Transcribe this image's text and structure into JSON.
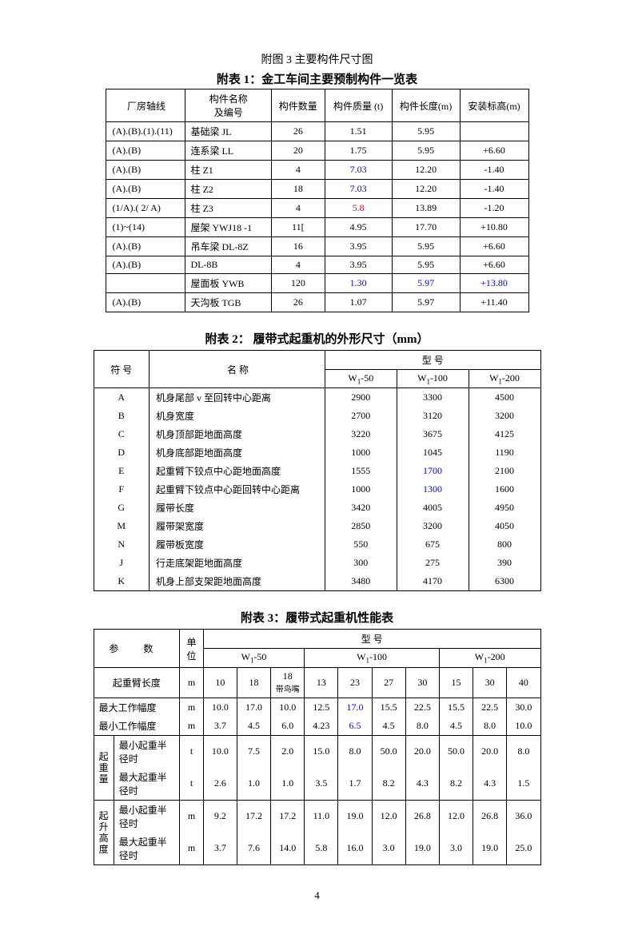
{
  "fig3_caption": "附图 3   主要构件尺寸图",
  "table1": {
    "title": "附表 1：金工车间主要预制构件一览表",
    "headers": [
      "厂房轴线",
      "构件名称\n及编号",
      "构件数量",
      "构件质量 (t)",
      "构件长度(m)",
      "安装标高(m)"
    ],
    "rows": [
      {
        "c": [
          "(A).(B).(1).(11)",
          "基础梁 JL",
          "26",
          "1.51",
          "5.95",
          ""
        ]
      },
      {
        "c": [
          "(A).(B)",
          "连系梁 LL",
          "20",
          "1.75",
          "5.95",
          "+6.60"
        ]
      },
      {
        "c": [
          "(A).(B)",
          "柱 Z1",
          "4",
          "7.03",
          "12.20",
          "-1.40"
        ],
        "blue": [
          3
        ]
      },
      {
        "c": [
          "(A).(B)",
          "柱 Z2",
          "18",
          "7.03",
          "12.20",
          "-1.40"
        ],
        "blue": [
          3
        ]
      },
      {
        "c": [
          "(1/A).( 2/ A)",
          "柱 Z3",
          "4",
          "5.8",
          "13.89",
          "-1.20"
        ],
        "red": [
          3
        ]
      },
      {
        "c": [
          "(1)~(14)",
          "屋架 YWJ18 -1",
          "11[",
          "4.95",
          "17.70",
          "+10.80"
        ]
      },
      {
        "c": [
          "(A).(B)",
          "吊车梁  DL-8Z",
          "16",
          "3.95",
          "5.95",
          "+6.60"
        ]
      },
      {
        "c": [
          "(A).(B)",
          "DL-8B",
          "4",
          "3.95",
          "5.95",
          "+6.60"
        ]
      },
      {
        "c": [
          "",
          "屋面板 YWB",
          "120",
          "1.30",
          "5.97",
          "+13.80"
        ],
        "blue": [
          3,
          4,
          5
        ]
      },
      {
        "c": [
          "(A).(B)",
          "天沟板 TGB",
          "26",
          "1.07",
          "5.97",
          "+11.40"
        ]
      }
    ]
  },
  "table2": {
    "title": "附表 2：  履带式起重机的外形尺寸（mm）",
    "header_sym": "符 号",
    "header_name": "名        称",
    "header_model": "型          号",
    "models": [
      "W₁-50",
      "W₁-100",
      "W₁-200"
    ],
    "rows": [
      {
        "sym": "A",
        "name": "机身尾部 v 至回转中心距离",
        "v": [
          "2900",
          "3300",
          "4500"
        ]
      },
      {
        "sym": "B",
        "name": "机身宽度",
        "v": [
          "2700",
          "3120",
          "3200"
        ]
      },
      {
        "sym": "C",
        "name": "机身顶部距地面高度",
        "v": [
          "3220",
          "3675",
          "4125"
        ]
      },
      {
        "sym": "D",
        "name": "机身底部距地面高度",
        "v": [
          "1000",
          "1045",
          "1190"
        ]
      },
      {
        "sym": "E",
        "name": "起重臂下铰点中心距地面高度",
        "v": [
          "1555",
          "1700",
          "2100"
        ],
        "blue": [
          1
        ]
      },
      {
        "sym": "F",
        "name": "起重臂下铰点中心距回转中心距离",
        "v": [
          "1000",
          "1300",
          "1600"
        ],
        "blue": [
          1
        ]
      },
      {
        "sym": "G",
        "name": "履带长度",
        "v": [
          "3420",
          "4005",
          "4950"
        ]
      },
      {
        "sym": "M",
        "name": "履带架宽度",
        "v": [
          "2850",
          "3200",
          "4050"
        ]
      },
      {
        "sym": "N",
        "name": "履带板宽度",
        "v": [
          "550",
          "675",
          "800"
        ]
      },
      {
        "sym": "J",
        "name": "行走底架距地面高度",
        "v": [
          "300",
          "275",
          "390"
        ]
      },
      {
        "sym": "K",
        "name": "机身上部支架距地面高度",
        "v": [
          "3480",
          "4170",
          "6300"
        ]
      }
    ]
  },
  "table3": {
    "title": "附表 3：履带式起重机性能表",
    "param_header": "参      数",
    "unit_header": "单\n位",
    "model_header": "型              号",
    "models": [
      "W₁-50",
      "W₁-100",
      "W₁-200"
    ],
    "boom_label": "起重臂长度",
    "boom_unit": "m",
    "boom_vals": [
      "10",
      "18",
      {
        "t": "18",
        "sub": "带鸟嘴"
      },
      "13",
      "23",
      "27",
      "30",
      "15",
      "30",
      "40"
    ],
    "row_groups": [
      {
        "label": null,
        "rows": [
          {
            "name": "最大工作幅度",
            "unit": "m",
            "v": [
              "10.0",
              "17.0",
              "10.0",
              "12.5",
              "17.0",
              "15.5",
              "22.5",
              "15.5",
              "22.5",
              "30.0"
            ],
            "blue": [
              4
            ]
          },
          {
            "name": "最小工作幅度",
            "unit": "m",
            "v": [
              "3.7",
              "4.5",
              "6.0",
              "4.23",
              "6.5",
              "4.5",
              "8.0",
              "4.5",
              "8.0",
              "10.0"
            ],
            "blue": [
              4
            ]
          }
        ]
      },
      {
        "label": "起重量",
        "rows": [
          {
            "name": "最小起重半径时",
            "unit": "t",
            "v": [
              "10.0",
              "7.5",
              "2.0",
              "15.0",
              "8.0",
              "50.0",
              "20.0",
              "50.0",
              "20.0",
              "8.0"
            ]
          },
          {
            "name": "最大起重半径时",
            "unit": "t",
            "v": [
              "2.6",
              "1.0",
              "1.0",
              "3.5",
              "1.7",
              "8.2",
              "4.3",
              "8.2",
              "4.3",
              "1.5"
            ]
          }
        ]
      },
      {
        "label": "起升高度",
        "rows": [
          {
            "name": "最小起重半径时",
            "unit": "m",
            "v": [
              "9.2",
              "17.2",
              "17.2",
              "11.0",
              "19.0",
              "12.0",
              "26.8",
              "12.0",
              "26.8",
              "36.0"
            ]
          },
          {
            "name": "最大起重半径时",
            "unit": "m",
            "v": [
              "3.7",
              "7.6",
              "14.0",
              "5.8",
              "16.0",
              "3.0",
              "19.0",
              "3.0",
              "19.0",
              "25.0"
            ]
          }
        ]
      }
    ]
  },
  "page_number": "4"
}
